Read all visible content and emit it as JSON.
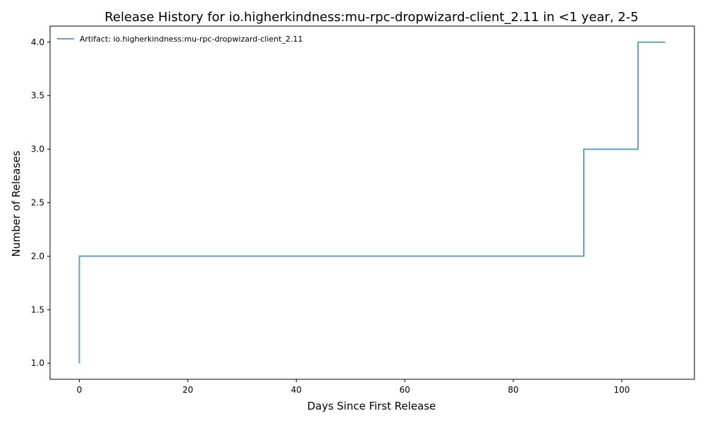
{
  "chart_data": {
    "type": "line",
    "step": "post",
    "title": "Release History for io.higherkindness:mu-rpc-dropwizard-client_2.11 in <1 year, 2-5",
    "xlabel": "Days Since First Release",
    "ylabel": "Number of Releases",
    "xlim": [
      -5.4,
      113.4
    ],
    "ylim": [
      0.85,
      4.15
    ],
    "xticks": [
      0,
      20,
      40,
      60,
      80,
      100
    ],
    "yticks": [
      1.0,
      1.5,
      2.0,
      2.5,
      3.0,
      3.5,
      4.0
    ],
    "xtick_labels": [
      "0",
      "20",
      "40",
      "60",
      "80",
      "100"
    ],
    "ytick_labels": [
      "1.0",
      "1.5",
      "2.0",
      "2.5",
      "3.0",
      "3.5",
      "4.0"
    ],
    "grid": false,
    "legend_position": "top-left",
    "series": [
      {
        "name": "Artifact: io.higherkindness:mu-rpc-dropwizard-client_2.11",
        "color": "#1f77b4",
        "x": [
          0,
          0,
          93,
          103,
          108
        ],
        "y": [
          1,
          2,
          3,
          4,
          4
        ]
      }
    ]
  }
}
